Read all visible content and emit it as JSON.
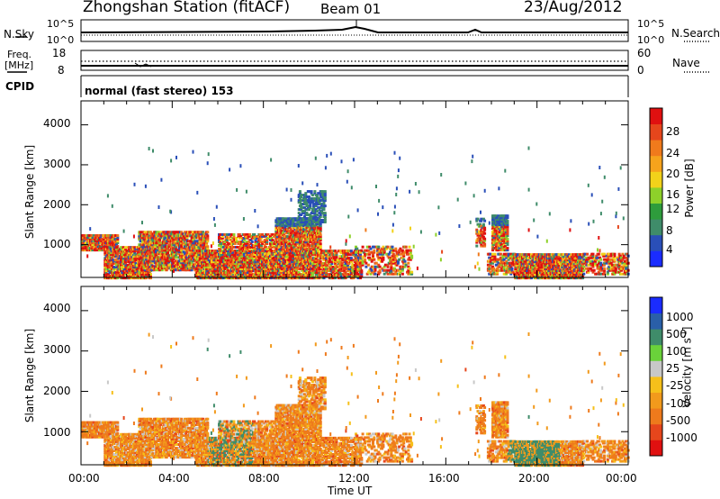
{
  "header": {
    "station": "Zhongshan Station (fitACF)",
    "beam": "Beam 01",
    "date": "23/Aug/2012"
  },
  "panels": {
    "nsky": {
      "left_label": "N.Sky",
      "right_label": "N.Search",
      "left_top": "10^5",
      "left_bottom": "10^0",
      "right_top": "10^5",
      "right_bottom": "10^0"
    },
    "freq": {
      "left_label_1": "Freq.",
      "left_label_2": "[MHz]",
      "left_top": "18",
      "left_bottom": "8",
      "right_label": "Nave",
      "right_top": "60",
      "right_bottom": "0"
    },
    "cpid": {
      "label": "CPID",
      "text": "normal (fast stereo) 153"
    }
  },
  "chart_data": [
    {
      "type": "heatmap",
      "name": "power",
      "ylabel": "Slant Range [km]",
      "ylim": [
        180,
        4600
      ],
      "yticks": [
        "1000",
        "2000",
        "3000",
        "4000"
      ],
      "yticks_values": [
        1000,
        2000,
        3000,
        4000
      ],
      "colorbar": {
        "label": "Power [dB]",
        "ticks": [
          "4",
          "8",
          "12",
          "16",
          "20",
          "24",
          "28"
        ],
        "colors": [
          "#1a2cff",
          "#2a4fb8",
          "#3f8c6a",
          "#2e9c3c",
          "#8ed12a",
          "#f2d21a",
          "#f6a31c",
          "#f07a1c",
          "#e6461c",
          "#e01010"
        ]
      }
    },
    {
      "type": "heatmap",
      "name": "velocity",
      "ylabel": "Slant Range [km]",
      "ylim": [
        180,
        4600
      ],
      "yticks": [
        "1000",
        "2000",
        "3000",
        "4000"
      ],
      "yticks_values": [
        1000,
        2000,
        3000,
        4000
      ],
      "xlabel": "Time UT",
      "xticks": [
        "00:00",
        "04:00",
        "08:00",
        "12:00",
        "16:00",
        "20:00",
        "00:00"
      ],
      "colorbar": {
        "label": "Velocity [m s",
        "label_sup": "-1",
        "label_end": "]",
        "ticks": [
          "1000",
          "500",
          "100",
          "25",
          "-25",
          "-100",
          "-500",
          "-1000"
        ],
        "colors": [
          "#1a2cff",
          "#2a5fa8",
          "#3f8c6a",
          "#6ad23a",
          "#c8c8c8",
          "#f6c01a",
          "#f29a1c",
          "#ee7a1c",
          "#e6461c",
          "#e01010"
        ]
      }
    }
  ]
}
